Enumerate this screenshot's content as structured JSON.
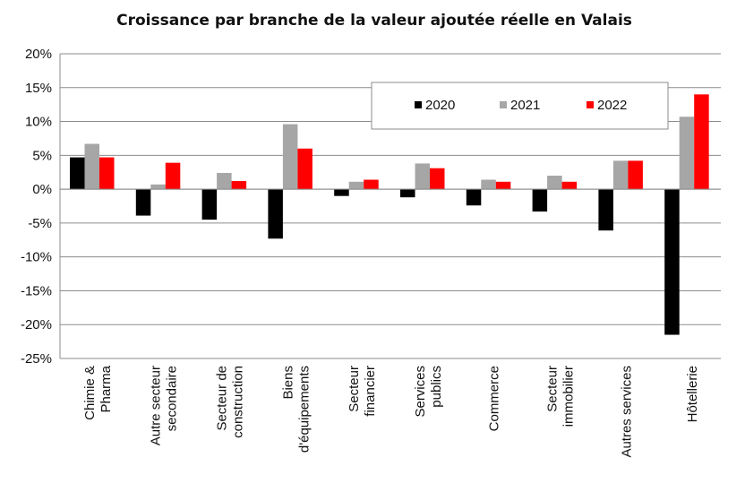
{
  "chart_data": {
    "type": "bar",
    "title": "Croissance par branche de la valeur ajoutée réelle en Valais",
    "xlabel": "",
    "ylabel": "",
    "ylim": [
      -25,
      20
    ],
    "yticks": [
      20,
      15,
      10,
      5,
      0,
      -5,
      -10,
      -15,
      -20,
      -25
    ],
    "ytick_labels": [
      "20%",
      "15%",
      "10%",
      "5%",
      "0%",
      "-5%",
      "-10%",
      "-15%",
      "-20%",
      "-25%"
    ],
    "grid": true,
    "legend_position": "top-right",
    "categories": [
      [
        "Chimie &",
        "Pharma"
      ],
      [
        "Autre secteur",
        "secondaire"
      ],
      [
        "Secteur de",
        "construction"
      ],
      [
        "Biens",
        "d'équipements"
      ],
      [
        "Secteur",
        "financier"
      ],
      [
        "Services",
        "publics"
      ],
      [
        "Commerce"
      ],
      [
        "Secteur",
        "immobilier"
      ],
      [
        "Autres services"
      ],
      [
        "Hôtellerie"
      ]
    ],
    "series": [
      {
        "name": "2020",
        "color": "#000000",
        "values": [
          4.7,
          -3.9,
          -4.5,
          -7.3,
          -1.0,
          -1.2,
          -2.4,
          -3.3,
          -6.1,
          -21.5
        ]
      },
      {
        "name": "2021",
        "color": "#a6a6a6",
        "values": [
          6.7,
          0.7,
          2.4,
          9.6,
          1.1,
          3.8,
          1.4,
          2.0,
          4.2,
          10.7
        ]
      },
      {
        "name": "2022",
        "color": "#ff0000",
        "values": [
          4.7,
          3.9,
          1.2,
          6.0,
          1.4,
          3.1,
          1.1,
          1.1,
          4.2,
          14.0
        ]
      }
    ]
  }
}
